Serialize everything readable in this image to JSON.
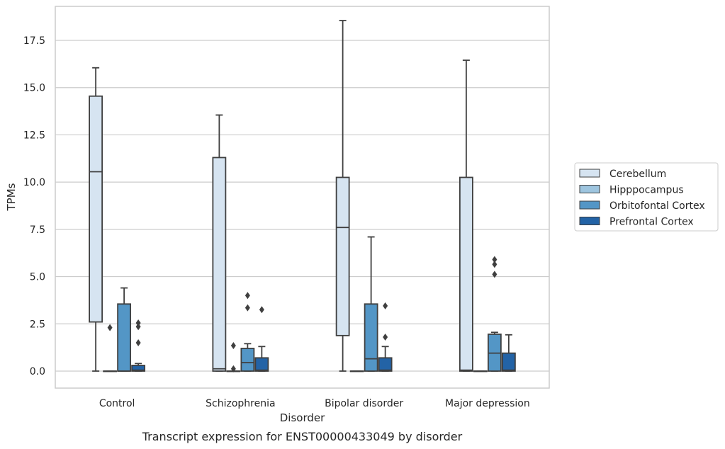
{
  "chart_data": {
    "type": "box",
    "caption": "Transcript expression for ENST00000433049 by disorder",
    "xlabel": "Disorder",
    "ylabel": "TPMs",
    "ylim": [
      -0.9,
      19.3
    ],
    "yticks": [
      0.0,
      2.5,
      5.0,
      7.5,
      10.0,
      12.5,
      15.0,
      17.5
    ],
    "ytick_labels": [
      "0.0",
      "2.5",
      "5.0",
      "7.5",
      "10.0",
      "12.5",
      "15.0",
      "17.5"
    ],
    "grid": "horizontal",
    "legend_position": "right",
    "categories": [
      "Control",
      "Schizophrenia",
      "Bipolar disorder",
      "Major depression"
    ],
    "series": [
      {
        "name": "Cerebellum",
        "color": "#d6e4f1",
        "boxes": [
          {
            "whisker_low": 0.0,
            "q1": 2.6,
            "median": 10.55,
            "q3": 14.55,
            "whisker_high": 16.05,
            "outliers": []
          },
          {
            "whisker_low": 0.0,
            "q1": 0.0,
            "median": 0.12,
            "q3": 11.3,
            "whisker_high": 13.55,
            "outliers": []
          },
          {
            "whisker_low": 0.0,
            "q1": 1.88,
            "median": 7.6,
            "q3": 10.25,
            "whisker_high": 18.55,
            "outliers": []
          },
          {
            "whisker_low": 0.0,
            "q1": 0.0,
            "median": 0.05,
            "q3": 10.25,
            "whisker_high": 16.45,
            "outliers": []
          }
        ]
      },
      {
        "name": "Hipppocampus",
        "color": "#9ec5df",
        "boxes": [
          {
            "whisker_low": 0.0,
            "q1": 0.0,
            "median": 0.0,
            "q3": 0.0,
            "whisker_high": 0.0,
            "outliers": [
              2.3
            ]
          },
          {
            "whisker_low": 0.0,
            "q1": 0.0,
            "median": 0.0,
            "q3": 0.0,
            "whisker_high": 0.0,
            "outliers": [
              1.35,
              0.12
            ]
          },
          {
            "whisker_low": 0.0,
            "q1": 0.0,
            "median": 0.0,
            "q3": 0.0,
            "whisker_high": 0.0,
            "outliers": []
          },
          {
            "whisker_low": 0.0,
            "q1": 0.0,
            "median": 0.0,
            "q3": 0.0,
            "whisker_high": 0.0,
            "outliers": []
          }
        ]
      },
      {
        "name": "Orbitofontal Cortex",
        "color": "#5396c6",
        "boxes": [
          {
            "whisker_low": 0.0,
            "q1": 0.0,
            "median": 0.0,
            "q3": 3.55,
            "whisker_high": 4.4,
            "outliers": []
          },
          {
            "whisker_low": 0.0,
            "q1": 0.0,
            "median": 0.45,
            "q3": 1.2,
            "whisker_high": 1.45,
            "outliers": [
              4.0,
              3.35
            ]
          },
          {
            "whisker_low": 0.0,
            "q1": 0.0,
            "median": 0.65,
            "q3": 3.55,
            "whisker_high": 7.1,
            "outliers": []
          },
          {
            "whisker_low": 0.0,
            "q1": 0.0,
            "median": 0.95,
            "q3": 1.95,
            "whisker_high": 2.05,
            "outliers": [
              5.9,
              5.65,
              5.12
            ]
          }
        ]
      },
      {
        "name": "Prefrontal Cortex",
        "color": "#2363a6",
        "boxes": [
          {
            "whisker_low": 0.0,
            "q1": 0.0,
            "median": 0.05,
            "q3": 0.3,
            "whisker_high": 0.4,
            "outliers": [
              2.55,
              2.35,
              1.5
            ]
          },
          {
            "whisker_low": 0.0,
            "q1": 0.0,
            "median": 0.05,
            "q3": 0.7,
            "whisker_high": 1.3,
            "outliers": [
              3.25
            ]
          },
          {
            "whisker_low": 0.0,
            "q1": 0.0,
            "median": 0.05,
            "q3": 0.7,
            "whisker_high": 1.3,
            "outliers": [
              3.45,
              1.8
            ]
          },
          {
            "whisker_low": 0.0,
            "q1": 0.0,
            "median": 0.05,
            "q3": 0.95,
            "whisker_high": 1.92,
            "outliers": []
          }
        ]
      }
    ]
  }
}
